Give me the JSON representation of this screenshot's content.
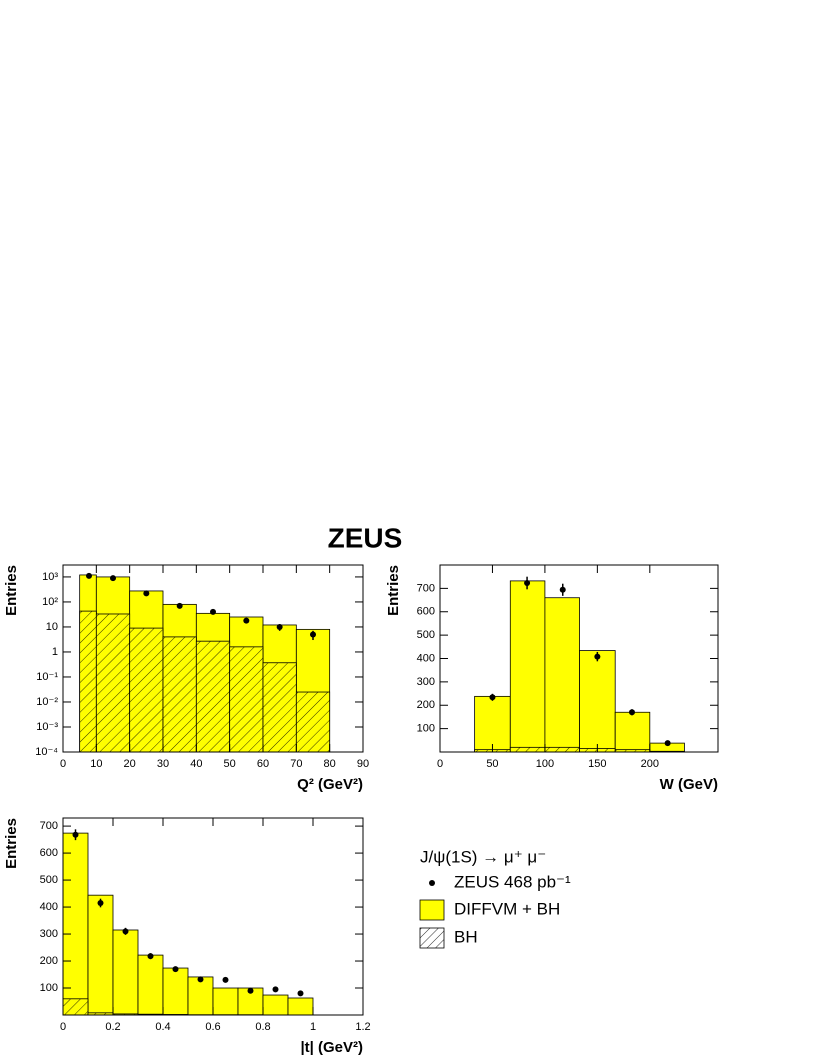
{
  "figure_title": "ZEUS",
  "chart_data": [
    {
      "type": "histogram",
      "log_y": true,
      "x_label": "Q² (GeV²)",
      "y_label": "Entries",
      "bins": [
        5,
        10,
        20,
        30,
        40,
        50,
        60,
        70,
        80
      ],
      "xlim": [
        0,
        90
      ],
      "xticks": [
        0,
        10,
        20,
        30,
        40,
        50,
        60,
        70,
        80,
        90
      ],
      "ylim": [
        0.0001,
        3000
      ],
      "yticks": [
        {
          "value": 0.0001,
          "label": "10⁻⁴"
        },
        {
          "value": 0.001,
          "label": "10⁻³"
        },
        {
          "value": 0.01,
          "label": "10⁻²"
        },
        {
          "value": 0.1,
          "label": "10⁻¹"
        },
        1,
        10,
        {
          "value": 100,
          "label": "10²"
        },
        {
          "value": 1000,
          "label": "10³"
        }
      ],
      "series": [
        {
          "color": "#ffff00",
          "values": [
            1200,
            1000,
            275,
            80,
            35,
            25,
            12,
            8
          ]
        },
        {
          "hatch": true,
          "values": [
            43,
            33,
            9,
            4,
            2.7,
            1.6,
            0.37,
            0.025
          ]
        },
        {
          "color": "#000000",
          "x": [
            7.8,
            15,
            25,
            35,
            45,
            55,
            65,
            75
          ],
          "values": [
            1100,
            900,
            220,
            70,
            40,
            18,
            10,
            5
          ],
          "errors": [
            35,
            30,
            15,
            8,
            6,
            4,
            3,
            2
          ]
        }
      ]
    },
    {
      "type": "histogram",
      "x_label": "W (GeV)",
      "y_label": "Entries",
      "bins": [
        33,
        67,
        100,
        133,
        167,
        200,
        233
      ],
      "xlim": [
        0,
        265
      ],
      "xticks": [
        0,
        50,
        100,
        150,
        200
      ],
      "ylim": [
        0,
        800
      ],
      "yticks": [
        100,
        200,
        300,
        400,
        500,
        600,
        700
      ],
      "series": [
        {
          "color": "#ffff00",
          "values": [
            238,
            732,
            660,
            434,
            170,
            38
          ]
        },
        {
          "hatch": true,
          "values": [
            10,
            20,
            20,
            15,
            10,
            3
          ]
        },
        {
          "color": "#000000",
          "x": [
            50,
            83,
            117,
            150,
            183,
            217
          ],
          "values": [
            234,
            723,
            694,
            408,
            170,
            38
          ],
          "errors": [
            15,
            27,
            26,
            20,
            13,
            6
          ]
        }
      ]
    },
    {
      "type": "histogram",
      "x_label": "|t| (GeV²)",
      "y_label": "Entries",
      "legend_title": "J/ψ(1S) → μ⁺ μ⁻",
      "bins": [
        0,
        0.1,
        0.2,
        0.3,
        0.4,
        0.5,
        0.6,
        0.7,
        0.8,
        0.9,
        1
      ],
      "xlim": [
        0,
        1.2
      ],
      "xticks": [
        0,
        0.2,
        0.4,
        0.6,
        0.8,
        1,
        1.2
      ],
      "ylim": [
        0,
        730
      ],
      "yticks": [
        100,
        200,
        300,
        400,
        500,
        600,
        700
      ],
      "series": [
        {
          "name": "DIFFVM + BH",
          "color": "#ffff00",
          "values": [
            674,
            444,
            315,
            222,
            174,
            141,
            100,
            100,
            74,
            63
          ]
        },
        {
          "name": "BH",
          "hatch": true,
          "values": [
            60,
            8,
            4,
            3,
            2,
            1,
            1,
            1,
            0,
            0
          ]
        },
        {
          "name": "ZEUS 468 pb⁻¹",
          "color": "#000000",
          "x": [
            0.05,
            0.15,
            0.25,
            0.35,
            0.45,
            0.55,
            0.65,
            0.75,
            0.85,
            0.95
          ],
          "values": [
            668,
            415,
            310,
            218,
            170,
            132,
            130,
            90,
            95,
            80
          ],
          "errors": [
            20,
            16,
            13,
            11,
            9,
            8,
            8,
            7,
            7,
            7
          ]
        }
      ]
    }
  ]
}
